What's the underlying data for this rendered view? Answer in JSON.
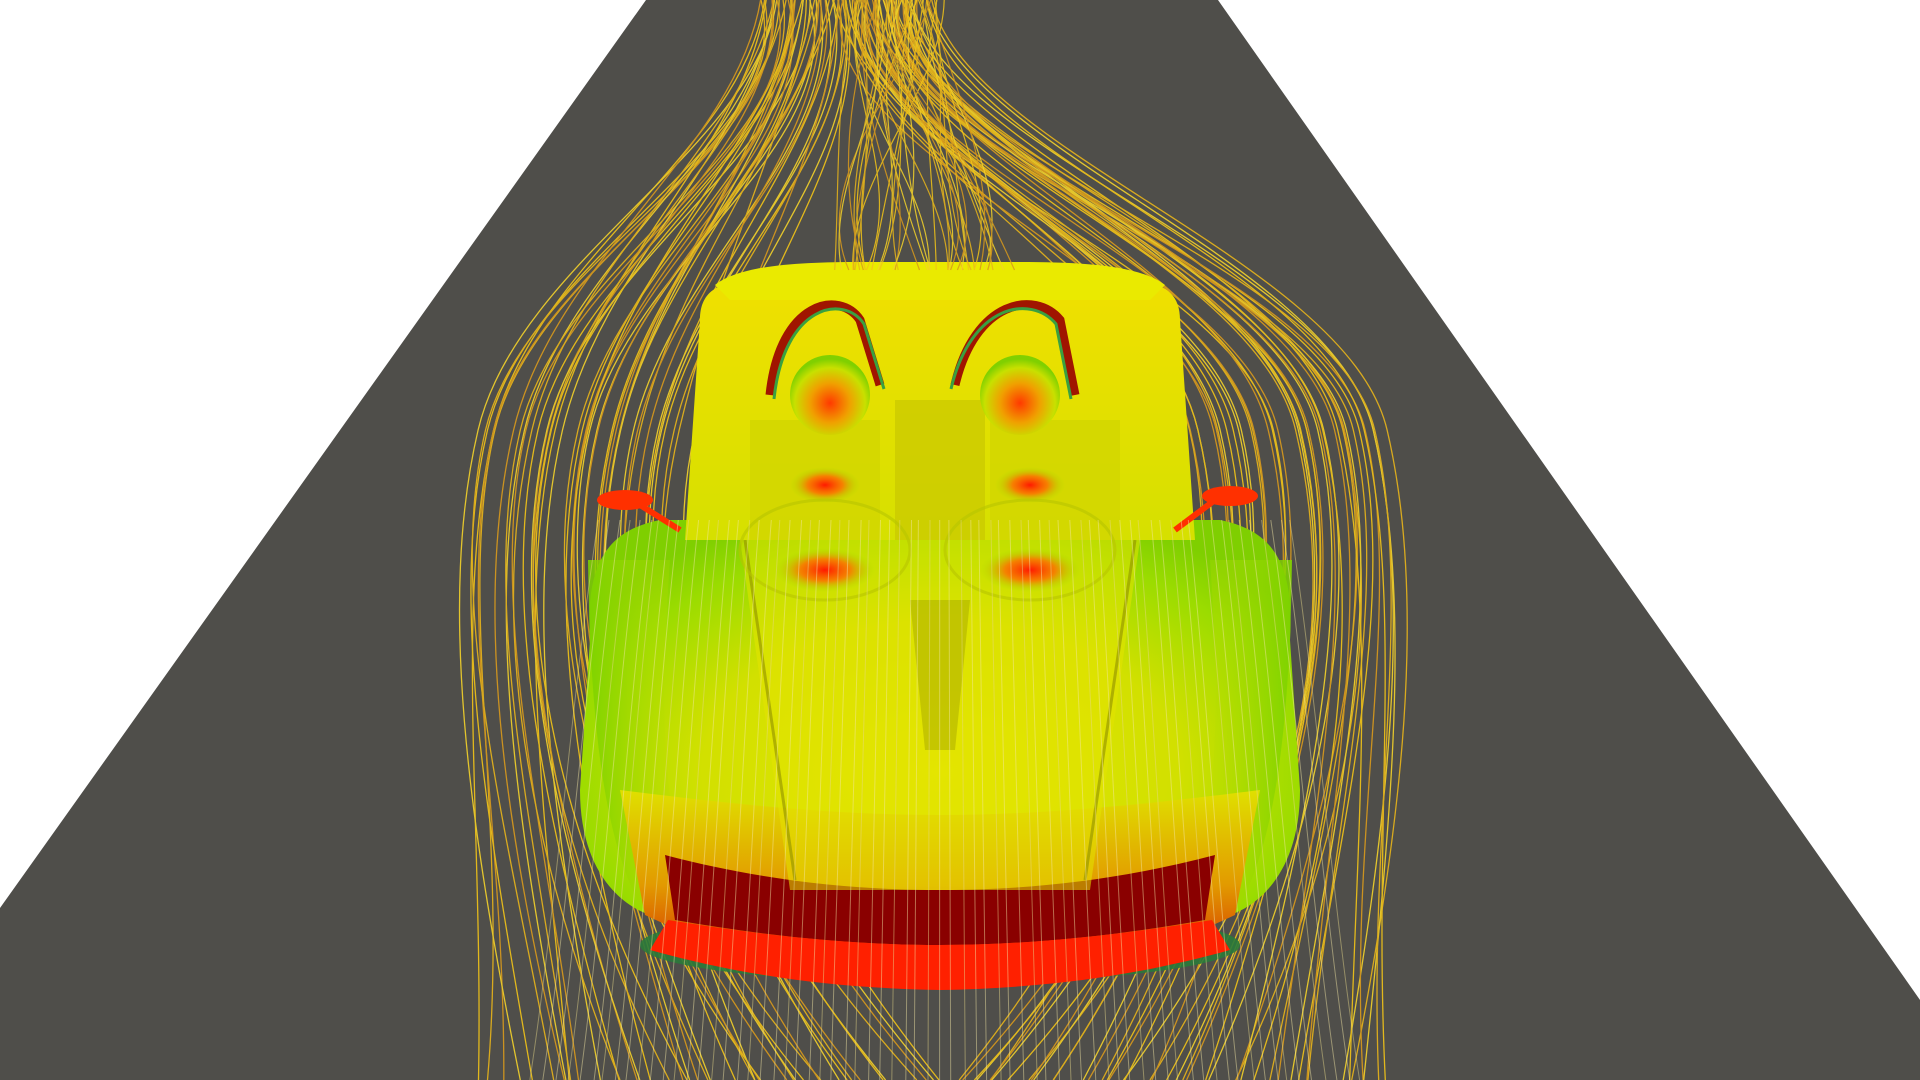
{
  "scene": {
    "background_color": "#ffffff",
    "ground_color": "#4f4e4a",
    "streamline_colors": [
      "#f2c418",
      "#e8b51a",
      "#d99a1c",
      "#f4d22a"
    ],
    "pressure_colormap": [
      "#c80000",
      "#ff2200",
      "#9be000",
      "#d6ea00",
      "#e6e600"
    ],
    "view": "front",
    "subject": "car-cfd-visualization"
  }
}
